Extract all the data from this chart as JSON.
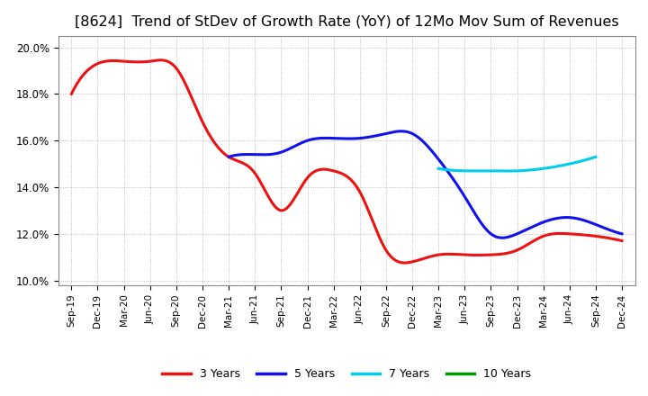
{
  "title": "[8624]  Trend of StDev of Growth Rate (YoY) of 12Mo Mov Sum of Revenues",
  "title_fontsize": 11.5,
  "ylim": [
    0.098,
    0.205
  ],
  "yticks": [
    0.1,
    0.12,
    0.14,
    0.16,
    0.18,
    0.2
  ],
  "x_labels": [
    "Sep-19",
    "Dec-19",
    "Mar-20",
    "Jun-20",
    "Sep-20",
    "Dec-20",
    "Mar-21",
    "Jun-21",
    "Sep-21",
    "Dec-21",
    "Mar-22",
    "Jun-22",
    "Sep-22",
    "Dec-22",
    "Mar-23",
    "Jun-23",
    "Sep-23",
    "Dec-23",
    "Mar-24",
    "Jun-24",
    "Sep-24",
    "Dec-24"
  ],
  "series_3y_color": "#ee1111",
  "series_5y_color": "#1111ee",
  "series_7y_color": "#00ccee",
  "series_10y_color": "#009900",
  "series_3y": [
    0.18,
    0.193,
    0.194,
    0.194,
    0.191,
    0.168,
    0.153,
    0.146,
    0.13,
    0.144,
    0.147,
    0.138,
    0.113,
    0.108,
    0.111,
    0.111,
    0.111,
    0.113,
    0.119,
    0.12,
    0.119,
    0.117
  ],
  "series_5y": [
    null,
    null,
    null,
    null,
    null,
    null,
    0.153,
    0.154,
    0.155,
    0.16,
    0.161,
    0.161,
    0.163,
    0.163,
    0.152,
    0.136,
    0.12,
    0.12,
    0.125,
    0.127,
    0.124,
    0.12
  ],
  "series_7y": [
    null,
    null,
    null,
    null,
    null,
    null,
    null,
    null,
    null,
    null,
    null,
    null,
    null,
    null,
    0.148,
    0.147,
    0.147,
    0.147,
    0.148,
    0.15,
    0.153,
    null
  ],
  "series_10y": [],
  "legend_labels": [
    "3 Years",
    "5 Years",
    "7 Years",
    "10 Years"
  ],
  "bg_color": "#ffffff",
  "grid_color": "#999999",
  "line_width": 2.2
}
